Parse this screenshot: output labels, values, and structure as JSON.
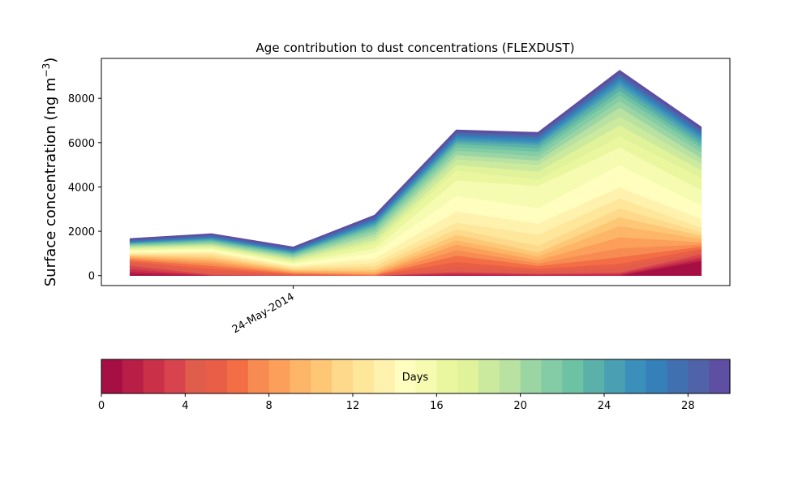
{
  "chart_data": [
    {
      "type": "area",
      "title": "Age contribution to dust concentrations (FLEXDUST)",
      "xlabel": "",
      "ylabel": "Surface concentration (ng m",
      "ylabel_sup": "−3",
      "ylabel_tail": ")",
      "x": [
        "22-May-2014",
        "23-May-2014",
        "24-May-2014",
        "25-May-2014",
        "26-May-2014",
        "27-May-2014",
        "28-May-2014",
        "29-May-2014"
      ],
      "xtick_labels": [
        "24-May-2014"
      ],
      "xtick_values": [
        "24-May-2014"
      ],
      "xlim": [
        "21.65-May-2014",
        "29.35-May-2014"
      ],
      "yticks": [
        0,
        2000,
        4000,
        6000,
        8000
      ],
      "ylim": [
        -450,
        9800
      ],
      "grid": false,
      "legend": "none",
      "stacked": true,
      "series": [
        {
          "values": [
            80,
            0,
            0,
            0,
            30,
            0,
            0,
            650
          ]
        },
        {
          "values": [
            100,
            10,
            0,
            0,
            30,
            30,
            40,
            80
          ]
        },
        {
          "values": [
            120,
            10,
            0,
            0,
            60,
            30,
            50,
            110
          ]
        },
        {
          "values": [
            150,
            30,
            10,
            0,
            50,
            30,
            50,
            130
          ]
        },
        {
          "values": [
            120,
            140,
            20,
            0,
            200,
            120,
            200,
            110
          ]
        },
        {
          "values": [
            80,
            120,
            30,
            10,
            250,
            100,
            200,
            120
          ]
        },
        {
          "values": [
            70,
            130,
            40,
            20,
            280,
            130,
            300,
            110
          ]
        },
        {
          "values": [
            60,
            110,
            40,
            30,
            250,
            120,
            400,
            100
          ]
        },
        {
          "values": [
            50,
            100,
            40,
            50,
            250,
            140,
            500,
            100
          ]
        },
        {
          "values": [
            50,
            100,
            50,
            80,
            200,
            180,
            500,
            150
          ]
        },
        {
          "values": [
            40,
            90,
            40,
            90,
            250,
            170,
            400,
            150
          ]
        },
        {
          "values": [
            40,
            100,
            60,
            150,
            250,
            300,
            400,
            150
          ]
        },
        {
          "values": [
            40,
            90,
            60,
            150,
            300,
            500,
            450,
            200
          ]
        },
        {
          "values": [
            50,
            70,
            60,
            200,
            500,
            500,
            500,
            400
          ]
        },
        {
          "values": [
            60,
            70,
            70,
            250,
            700,
            700,
            1000,
            600
          ]
        },
        {
          "values": [
            50,
            60,
            70,
            200,
            700,
            1000,
            800,
            700
          ]
        },
        {
          "values": [
            50,
            60,
            60,
            200,
            450,
            300,
            500,
            550
          ]
        },
        {
          "values": [
            40,
            50,
            60,
            150,
            250,
            350,
            500,
            350
          ]
        },
        {
          "values": [
            40,
            50,
            60,
            150,
            250,
            300,
            400,
            300
          ]
        },
        {
          "values": [
            40,
            50,
            60,
            150,
            200,
            200,
            400,
            250
          ]
        },
        {
          "values": [
            40,
            50,
            60,
            150,
            200,
            200,
            300,
            250
          ]
        },
        {
          "values": [
            30,
            50,
            50,
            100,
            150,
            200,
            250,
            200
          ]
        },
        {
          "values": [
            30,
            50,
            50,
            100,
            150,
            150,
            200,
            150
          ]
        },
        {
          "values": [
            30,
            40,
            40,
            80,
            100,
            150,
            200,
            150
          ]
        },
        {
          "values": [
            30,
            40,
            40,
            80,
            100,
            100,
            150,
            150
          ]
        },
        {
          "values": [
            30,
            40,
            40,
            80,
            100,
            100,
            150,
            100
          ]
        },
        {
          "values": [
            30,
            40,
            40,
            60,
            80,
            100,
            100,
            100
          ]
        },
        {
          "values": [
            30,
            40,
            40,
            60,
            80,
            80,
            100,
            100
          ]
        },
        {
          "values": [
            30,
            40,
            40,
            60,
            70,
            80,
            100,
            80
          ]
        },
        {
          "values": [
            40,
            40,
            40,
            60,
            70,
            80,
            100,
            90
          ]
        }
      ]
    },
    {
      "type": "heatmap",
      "label": "Days",
      "ticks": [
        0,
        4,
        8,
        12,
        16,
        20,
        24,
        28
      ],
      "range": [
        0,
        30
      ],
      "colors": [
        "#a50f44",
        "#b91e46",
        "#cb3049",
        "#d9434e",
        "#e05c4b",
        "#e95e47",
        "#f36d45",
        "#f78b52",
        "#fb9f5a",
        "#fdb567",
        "#fdc776",
        "#fed98b",
        "#fee69a",
        "#fef2ae",
        "#fffebe",
        "#f5fbb0",
        "#eaf79e",
        "#e0f29a",
        "#cbea9d",
        "#b8e1a2",
        "#9cd5a4",
        "#83cca5",
        "#6ec2a4",
        "#5bb1a9",
        "#4aa0b2",
        "#3a8fbb",
        "#3680b9",
        "#4170b0",
        "#5062a8",
        "#5e4fa2"
      ]
    }
  ]
}
